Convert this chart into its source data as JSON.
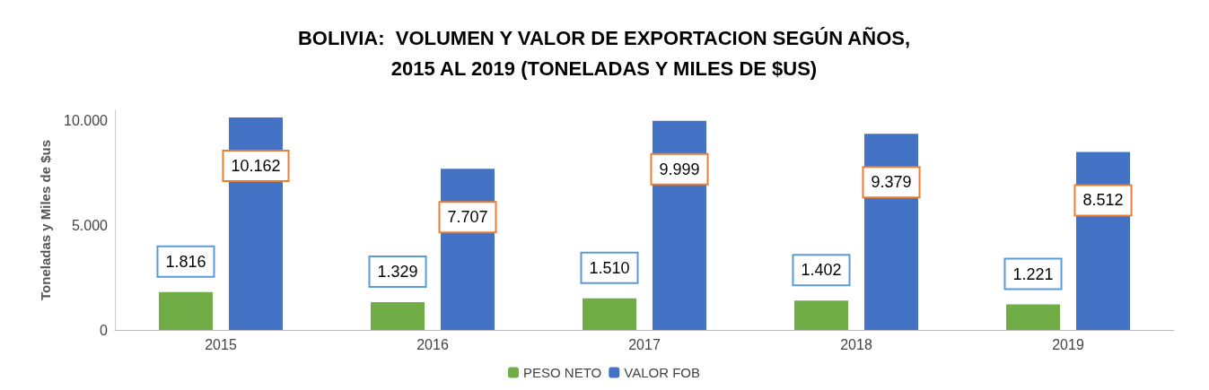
{
  "chart_data": {
    "type": "bar",
    "title": "BOLIVIA:  VOLUMEN Y VALOR DE EXPORTACION SEGÚN AÑOS,\n2015 AL 2019 (TONELADAS Y MILES DE $US)",
    "ylabel": "Toneladas y Miles de $us",
    "categories": [
      "2015",
      "2016",
      "2017",
      "2018",
      "2019"
    ],
    "series": [
      {
        "name": "PESO NETO",
        "color": "#70ad47",
        "values": [
          1816,
          1329,
          1510,
          1402,
          1221
        ],
        "value_labels": [
          "1.816",
          "1.329",
          "1.510",
          "1.402",
          "1.221"
        ]
      },
      {
        "name": "VALOR FOB",
        "color": "#4472c4",
        "values": [
          10162,
          7707,
          9999,
          9379,
          8512
        ],
        "value_labels": [
          "10.162",
          "7.707",
          "9.999",
          "9.379",
          "8.512"
        ]
      }
    ],
    "ylim": [
      0,
      10500
    ],
    "yticks": [
      {
        "value": 0,
        "label": "0"
      },
      {
        "value": 5000,
        "label": "5.000"
      },
      {
        "value": 10000,
        "label": "10.000"
      }
    ],
    "grid": false,
    "legend": "bottom"
  }
}
